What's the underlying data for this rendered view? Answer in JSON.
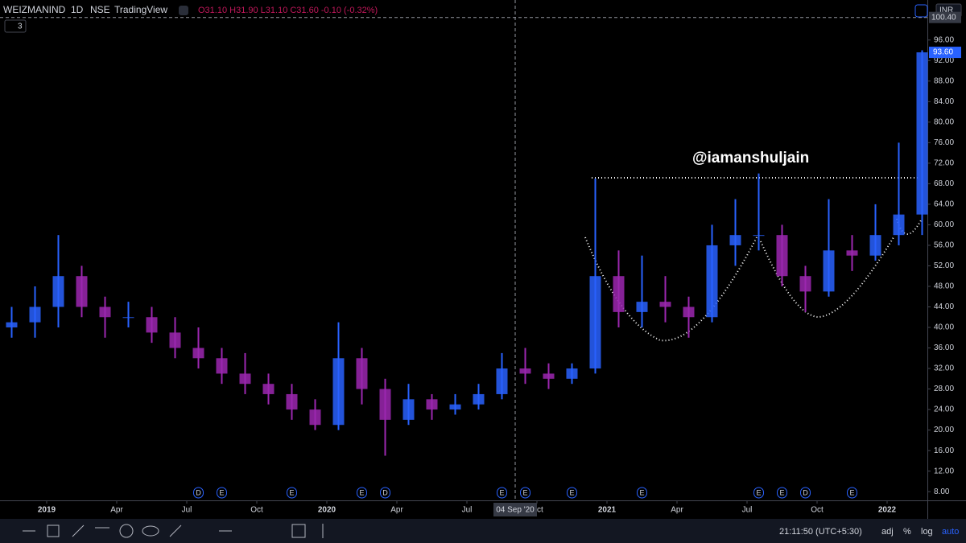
{
  "chart_data": {
    "type": "candlestick",
    "header": {
      "symbol": "WEIZMANIND",
      "interval": "1D",
      "exchange": "NSE",
      "source": "TradingView",
      "ohlc": "O31.10 H31.90 L31.10 C31.60 -0.10 (-0.32%)",
      "indicators": "3",
      "currency": "INR"
    },
    "annotation": "@iamanshuljain",
    "x": [
      "2018-11",
      "2018-12",
      "2019-01",
      "2019-02",
      "2019-03",
      "2019-04",
      "2019-05",
      "2019-06",
      "2019-07",
      "2019-08",
      "2019-09",
      "2019-10",
      "2019-11",
      "2019-12",
      "2020-01",
      "2020-02",
      "2020-03",
      "2020-04",
      "2020-05",
      "2020-06",
      "2020-07",
      "2020-08",
      "2020-09",
      "2020-10",
      "2020-11",
      "2020-12",
      "2021-01",
      "2021-02",
      "2021-03",
      "2021-04",
      "2021-05",
      "2021-06",
      "2021-07",
      "2021-08",
      "2021-09",
      "2021-10",
      "2021-11",
      "2021-12",
      "2022-01",
      "2022-02"
    ],
    "open": [
      40,
      41,
      44,
      50,
      44,
      42,
      42,
      39,
      36,
      34,
      31,
      29,
      27,
      24,
      21,
      34,
      28,
      22,
      26,
      24,
      25,
      27,
      32,
      31,
      30,
      32,
      50,
      43,
      45,
      44,
      42,
      56,
      58,
      58,
      50,
      47,
      55,
      54,
      58,
      62
    ],
    "high": [
      44,
      48,
      58,
      52,
      46,
      45,
      44,
      42,
      40,
      36,
      35,
      31,
      29,
      26,
      41,
      36,
      30,
      29,
      27,
      27,
      29,
      35,
      36,
      33,
      33,
      69,
      55,
      54,
      50,
      46,
      60,
      65,
      70,
      60,
      52,
      65,
      58,
      64,
      76,
      94
    ],
    "low": [
      38,
      38,
      40,
      42,
      38,
      40,
      37,
      34,
      32,
      29,
      27,
      25,
      22,
      20,
      20,
      25,
      15,
      21,
      22,
      23,
      24,
      26,
      29,
      28,
      29,
      31,
      40,
      40,
      41,
      38,
      41,
      52,
      55,
      48,
      43,
      46,
      51,
      53,
      56,
      58
    ],
    "close": [
      41,
      44,
      50,
      44,
      42,
      42,
      39,
      36,
      34,
      31,
      29,
      27,
      24,
      21,
      34,
      28,
      22,
      26,
      24,
      25,
      27,
      32,
      31,
      30,
      32,
      50,
      43,
      45,
      44,
      42,
      56,
      58,
      58,
      50,
      47,
      55,
      54,
      58,
      62,
      93.6
    ],
    "up_color": "#2962ff",
    "down_color": "#9c27b0",
    "ylim": [
      6.3,
      103.8
    ],
    "yticks": [
      {
        "value": 8,
        "label": "8.00"
      },
      {
        "value": 12,
        "label": "12.00"
      },
      {
        "value": 16,
        "label": "16.00"
      },
      {
        "value": 20,
        "label": "20.00"
      },
      {
        "value": 24,
        "label": "24.00"
      },
      {
        "value": 28,
        "label": "28.00"
      },
      {
        "value": 32,
        "label": "32.00"
      },
      {
        "value": 36,
        "label": "36.00"
      },
      {
        "value": 40,
        "label": "40.00"
      },
      {
        "value": 44,
        "label": "44.00"
      },
      {
        "value": 48,
        "label": "48.00"
      },
      {
        "value": 52,
        "label": "52.00"
      },
      {
        "value": 56,
        "label": "56.00"
      },
      {
        "value": 60,
        "label": "60.00"
      },
      {
        "value": 64,
        "label": "64.00"
      },
      {
        "value": 68,
        "label": "68.00"
      },
      {
        "value": 72,
        "label": "72.00"
      },
      {
        "value": 76,
        "label": "76.00"
      },
      {
        "value": 80,
        "label": "80.00"
      },
      {
        "value": 84,
        "label": "84.00"
      },
      {
        "value": 88,
        "label": "88.00"
      },
      {
        "value": 92,
        "label": "92.00"
      },
      {
        "value": 96,
        "label": "96.00"
      }
    ],
    "xticks": [
      {
        "value": "2019-01",
        "label": "2019"
      },
      {
        "value": "2019-04",
        "label": "Apr"
      },
      {
        "value": "2019-07",
        "label": "Jul"
      },
      {
        "value": "2019-10",
        "label": "Oct"
      },
      {
        "value": "2020-01",
        "label": "2020"
      },
      {
        "value": "2020-04",
        "label": "Apr"
      },
      {
        "value": "2020-07",
        "label": "Jul"
      },
      {
        "value": "2020-10",
        "label": "Oct"
      },
      {
        "value": "2021-01",
        "label": "2021"
      },
      {
        "value": "2021-04",
        "label": "Apr"
      },
      {
        "value": "2021-07",
        "label": "Jul"
      },
      {
        "value": "2021-10",
        "label": "Oct"
      },
      {
        "value": "2022-01",
        "label": "2022"
      }
    ],
    "last_price": {
      "value": 93.6,
      "label": "93.60"
    },
    "crosshair": {
      "x": "2020-09",
      "date_label": "04 Sep '20",
      "price": {
        "value": 100.4,
        "label": "100.40"
      }
    },
    "events": [
      {
        "x": "2019-07",
        "label": "D"
      },
      {
        "x": "2019-08",
        "label": "E"
      },
      {
        "x": "2019-11",
        "label": "E"
      },
      {
        "x": "2020-02",
        "label": "E"
      },
      {
        "x": "2020-03",
        "label": "D"
      },
      {
        "x": "2020-08",
        "label": "E"
      },
      {
        "x": "2020-09",
        "label": "E"
      },
      {
        "x": "2020-11",
        "label": "E"
      },
      {
        "x": "2021-02",
        "label": "E"
      },
      {
        "x": "2021-07",
        "label": "E"
      },
      {
        "x": "2021-08",
        "label": "E"
      },
      {
        "x": "2021-09",
        "label": "D"
      },
      {
        "x": "2021-11",
        "label": "E"
      }
    ],
    "footer": {
      "time": "21:11:50 (UTC+5:30)",
      "adj": "adj",
      "percent": "%",
      "log": "log",
      "auto": "auto"
    }
  }
}
